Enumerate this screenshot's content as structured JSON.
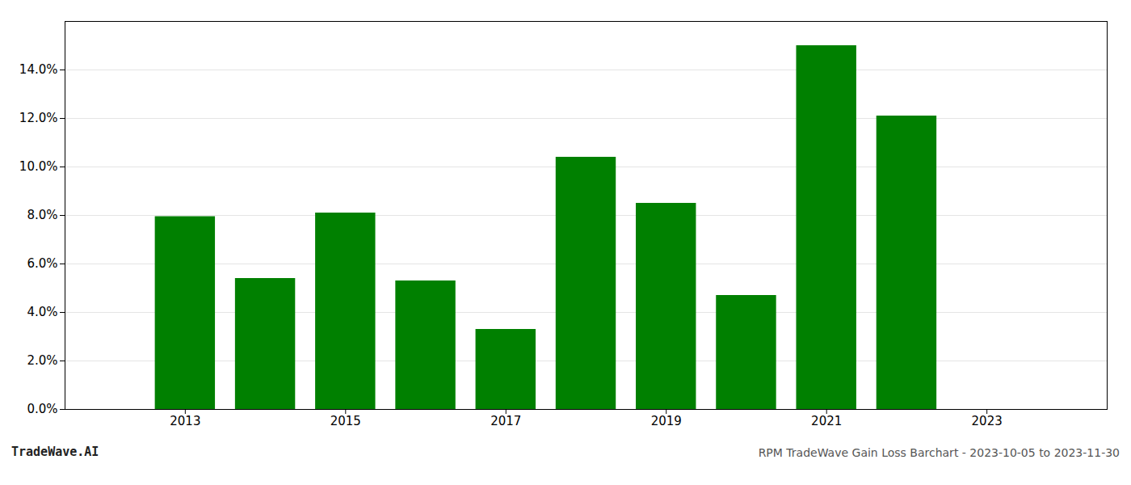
{
  "chart_data": {
    "type": "bar",
    "x": [
      2013,
      2014,
      2015,
      2016,
      2017,
      2018,
      2019,
      2020,
      2021,
      2022
    ],
    "values": [
      0.0795,
      0.054,
      0.081,
      0.053,
      0.033,
      0.104,
      0.085,
      0.047,
      0.15,
      0.121
    ],
    "color": "#008000",
    "xlim": [
      2011.5,
      2024.5
    ],
    "xticks": [
      2013,
      2015,
      2017,
      2019,
      2021,
      2023
    ],
    "ylim": [
      0,
      0.16
    ],
    "yticks": [
      {
        "value": 0.0,
        "label": "0.0%"
      },
      {
        "value": 0.02,
        "label": "2.0%"
      },
      {
        "value": 0.04,
        "label": "4.0%"
      },
      {
        "value": 0.06,
        "label": "6.0%"
      },
      {
        "value": 0.08,
        "label": "8.0%"
      },
      {
        "value": 0.1,
        "label": "10.0%"
      },
      {
        "value": 0.12,
        "label": "12.0%"
      },
      {
        "value": 0.14,
        "label": "14.0%"
      }
    ],
    "grid": true,
    "annotations": [
      "TradeWave.AI",
      "RPM TradeWave Gain Loss Barchart - 2023-10-05 to 2023-11-30"
    ]
  }
}
